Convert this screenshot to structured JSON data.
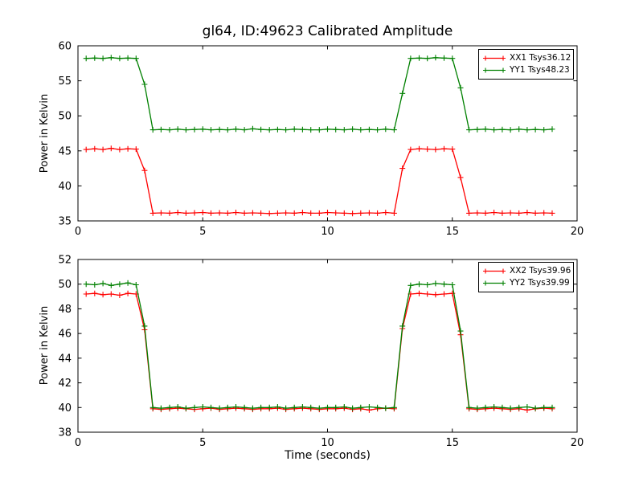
{
  "window": {
    "background": "#ffffff"
  },
  "colors": {
    "axis": "#000000",
    "text": "#000000",
    "red_series": "#ff0000",
    "green_series": "#008000"
  },
  "chart_data": {
    "type": "line",
    "title": "gl64, ID:49623 Calibrated Amplitude",
    "xlabel": "Time (seconds)",
    "grid": false,
    "marker": "+",
    "x": [
      0.33,
      0.67,
      1.0,
      1.33,
      1.67,
      2.0,
      2.33,
      2.67,
      3.0,
      3.33,
      3.67,
      4.0,
      4.33,
      4.67,
      5.0,
      5.33,
      5.67,
      6.0,
      6.33,
      6.67,
      7.0,
      7.33,
      7.67,
      8.0,
      8.33,
      8.67,
      9.0,
      9.33,
      9.67,
      10.0,
      10.33,
      10.67,
      11.0,
      11.33,
      11.67,
      12.0,
      12.33,
      12.67,
      13.0,
      13.33,
      13.67,
      14.0,
      14.33,
      14.67,
      15.0,
      15.33,
      15.67,
      16.0,
      16.33,
      16.67,
      17.0,
      17.33,
      17.67,
      18.0,
      18.33,
      18.67,
      19.0
    ],
    "plots": [
      {
        "ylabel": "Power in Kelvin",
        "xlim": [
          0,
          20
        ],
        "ylim": [
          35,
          60
        ],
        "xticks": [
          0,
          5,
          10,
          15,
          20
        ],
        "yticks": [
          35,
          40,
          45,
          50,
          55,
          60
        ],
        "legend_position": "upper right",
        "series": [
          {
            "label": "XX1 Tsys36.12",
            "color": "#ff0000",
            "values": [
              45.2,
              45.3,
              45.2,
              45.35,
              45.2,
              45.3,
              45.25,
              42.2,
              36.1,
              36.15,
              36.1,
              36.2,
              36.1,
              36.15,
              36.2,
              36.1,
              36.15,
              36.1,
              36.2,
              36.1,
              36.15,
              36.1,
              36.05,
              36.1,
              36.15,
              36.1,
              36.2,
              36.1,
              36.1,
              36.2,
              36.15,
              36.1,
              36.05,
              36.1,
              36.15,
              36.1,
              36.2,
              36.1,
              42.5,
              45.2,
              45.3,
              45.25,
              45.2,
              45.3,
              45.25,
              41.2,
              36.1,
              36.15,
              36.1,
              36.2,
              36.1,
              36.15,
              36.1,
              36.2,
              36.1,
              36.15,
              36.1
            ]
          },
          {
            "label": "YY1 Tsys48.23",
            "color": "#008000",
            "values": [
              58.2,
              58.25,
              58.2,
              58.3,
              58.2,
              58.25,
              58.2,
              54.5,
              48.0,
              48.05,
              48.0,
              48.1,
              48.0,
              48.05,
              48.1,
              48.0,
              48.05,
              48.0,
              48.1,
              48.0,
              48.15,
              48.05,
              48.0,
              48.05,
              48.0,
              48.1,
              48.05,
              48.0,
              48.0,
              48.1,
              48.05,
              48.0,
              48.1,
              48.0,
              48.05,
              48.0,
              48.1,
              48.0,
              53.2,
              58.2,
              58.25,
              58.2,
              58.3,
              58.25,
              58.2,
              54.0,
              48.0,
              48.05,
              48.1,
              48.0,
              48.05,
              48.0,
              48.1,
              48.0,
              48.05,
              48.0,
              48.1
            ]
          }
        ]
      },
      {
        "ylabel": "Power in Kelvin",
        "xlim": [
          0,
          20
        ],
        "ylim": [
          38,
          52
        ],
        "xticks": [
          0,
          5,
          10,
          15,
          20
        ],
        "yticks": [
          38,
          40,
          42,
          44,
          46,
          48,
          50,
          52
        ],
        "legend_position": "upper right",
        "series": [
          {
            "label": "XX2 Tsys39.96",
            "color": "#ff0000",
            "values": [
              49.2,
              49.25,
              49.15,
              49.2,
              49.1,
              49.25,
              49.2,
              46.3,
              39.9,
              39.85,
              39.9,
              39.95,
              39.9,
              39.85,
              39.9,
              39.95,
              39.85,
              39.9,
              39.95,
              39.9,
              39.85,
              39.9,
              39.9,
              39.95,
              39.85,
              39.9,
              39.95,
              39.9,
              39.85,
              39.9,
              39.9,
              39.95,
              39.85,
              39.9,
              39.8,
              39.9,
              39.95,
              39.9,
              46.4,
              49.2,
              49.25,
              49.2,
              49.15,
              49.2,
              49.25,
              45.9,
              39.9,
              39.85,
              39.9,
              39.95,
              39.9,
              39.85,
              39.9,
              39.8,
              39.9,
              39.95,
              39.9
            ]
          },
          {
            "label": "YY2 Tsys39.99",
            "color": "#008000",
            "values": [
              50.0,
              49.95,
              50.05,
              49.9,
              50.0,
              50.1,
              49.95,
              46.6,
              40.0,
              39.95,
              40.0,
              40.05,
              39.95,
              40.0,
              40.05,
              40.0,
              39.95,
              40.0,
              40.05,
              40.0,
              39.95,
              40.0,
              40.0,
              40.05,
              39.95,
              40.0,
              40.05,
              40.0,
              39.95,
              40.0,
              40.0,
              40.05,
              39.95,
              40.0,
              40.05,
              40.0,
              39.95,
              40.0,
              46.6,
              49.9,
              50.0,
              49.95,
              50.05,
              50.0,
              49.95,
              46.2,
              40.0,
              39.95,
              40.0,
              40.05,
              40.0,
              39.95,
              40.0,
              40.05,
              39.95,
              40.0,
              40.0
            ]
          }
        ]
      }
    ]
  }
}
